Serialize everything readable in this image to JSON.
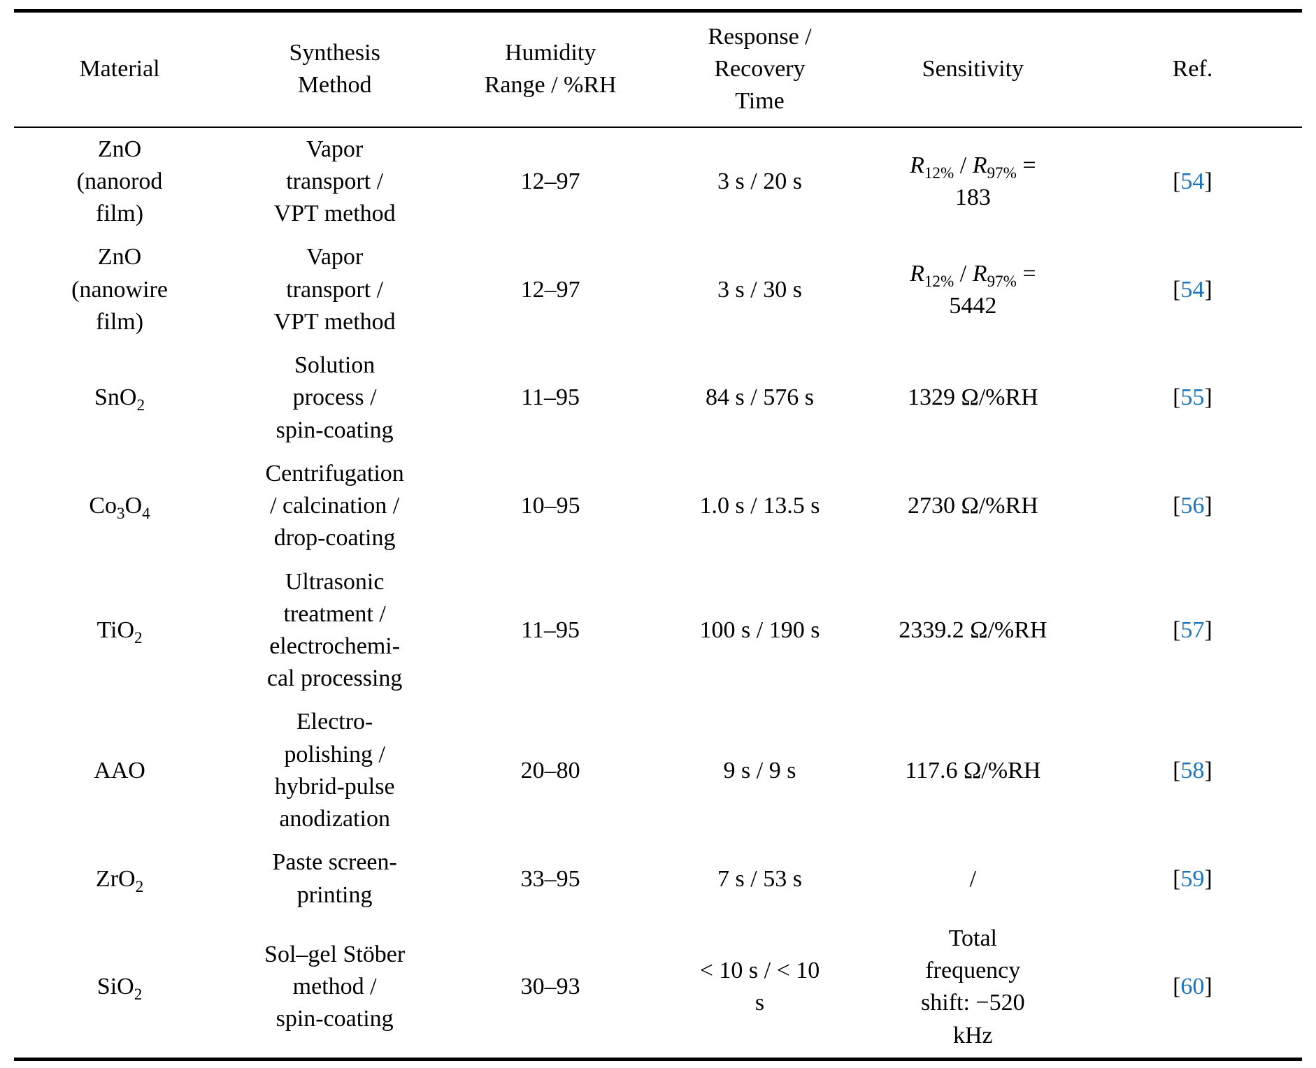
{
  "page": {
    "background_color": "#ffffff",
    "text_color": "#000000",
    "citation_color": "#1b75bc"
  },
  "table": {
    "columns": [
      {
        "id": "material",
        "label": "Material"
      },
      {
        "id": "synthesis",
        "label": "Synthesis\nMethod"
      },
      {
        "id": "humidity",
        "label": "Humidity\nRange / %RH"
      },
      {
        "id": "response",
        "label": "Response /\nRecovery\nTime"
      },
      {
        "id": "sensitivity",
        "label": "Sensitivity"
      },
      {
        "id": "ref",
        "label": "Ref."
      }
    ],
    "rows": [
      {
        "material": [
          {
            "t": "ZnO\n(nanorod\nfilm)"
          }
        ],
        "synthesis": [
          {
            "t": "Vapor\ntransport /\nVPT method"
          }
        ],
        "humidity": [
          {
            "t": "12–97"
          }
        ],
        "response": [
          {
            "t": "3 s / 20 s"
          }
        ],
        "sensitivity": [
          {
            "t": "R",
            "i": true
          },
          {
            "t": "12%",
            "sub": true
          },
          {
            "t": " / "
          },
          {
            "t": "R",
            "i": true
          },
          {
            "t": "97%",
            "sub": true
          },
          {
            "t": " =\n183"
          }
        ],
        "ref": [
          {
            "t": "["
          },
          {
            "t": "54",
            "ref": true
          },
          {
            "t": "]"
          }
        ]
      },
      {
        "material": [
          {
            "t": "ZnO\n(nanowire\nfilm)"
          }
        ],
        "synthesis": [
          {
            "t": "Vapor\ntransport /\nVPT method"
          }
        ],
        "humidity": [
          {
            "t": "12–97"
          }
        ],
        "response": [
          {
            "t": "3 s / 30 s"
          }
        ],
        "sensitivity": [
          {
            "t": "R",
            "i": true
          },
          {
            "t": "12%",
            "sub": true
          },
          {
            "t": " / "
          },
          {
            "t": "R",
            "i": true
          },
          {
            "t": "97%",
            "sub": true
          },
          {
            "t": " =\n5442"
          }
        ],
        "ref": [
          {
            "t": "["
          },
          {
            "t": "54",
            "ref": true
          },
          {
            "t": "]"
          }
        ]
      },
      {
        "material": [
          {
            "t": "SnO"
          },
          {
            "t": "2",
            "sub": true
          }
        ],
        "synthesis": [
          {
            "t": "Solution\nprocess /\nspin-coating"
          }
        ],
        "humidity": [
          {
            "t": "11–95"
          }
        ],
        "response": [
          {
            "t": "84 s / 576 s"
          }
        ],
        "sensitivity": [
          {
            "t": "1329 Ω/%RH"
          }
        ],
        "ref": [
          {
            "t": "["
          },
          {
            "t": "55",
            "ref": true
          },
          {
            "t": "]"
          }
        ]
      },
      {
        "material": [
          {
            "t": "Co"
          },
          {
            "t": "3",
            "sub": true
          },
          {
            "t": "O"
          },
          {
            "t": "4",
            "sub": true
          }
        ],
        "synthesis": [
          {
            "t": "Centrifugation\n/ calcination /\ndrop-coating"
          }
        ],
        "humidity": [
          {
            "t": "10–95"
          }
        ],
        "response": [
          {
            "t": "1.0 s / 13.5 s"
          }
        ],
        "sensitivity": [
          {
            "t": "2730 Ω/%RH"
          }
        ],
        "ref": [
          {
            "t": "["
          },
          {
            "t": "56",
            "ref": true
          },
          {
            "t": "]"
          }
        ]
      },
      {
        "material": [
          {
            "t": "TiO"
          },
          {
            "t": "2",
            "sub": true
          }
        ],
        "synthesis": [
          {
            "t": "Ultrasonic\ntreatment /\nelectrochemi-\ncal processing"
          }
        ],
        "humidity": [
          {
            "t": "11–95"
          }
        ],
        "response": [
          {
            "t": "100 s / 190 s"
          }
        ],
        "sensitivity": [
          {
            "t": "2339.2 Ω/%RH"
          }
        ],
        "ref": [
          {
            "t": "["
          },
          {
            "t": "57",
            "ref": true
          },
          {
            "t": "]"
          }
        ]
      },
      {
        "material": [
          {
            "t": "AAO"
          }
        ],
        "synthesis": [
          {
            "t": "Electro-\npolishing /\nhybrid-pulse\nanodization"
          }
        ],
        "humidity": [
          {
            "t": "20–80"
          }
        ],
        "response": [
          {
            "t": "9 s / 9 s"
          }
        ],
        "sensitivity": [
          {
            "t": "117.6 Ω/%RH"
          }
        ],
        "ref": [
          {
            "t": "["
          },
          {
            "t": "58",
            "ref": true
          },
          {
            "t": "]"
          }
        ]
      },
      {
        "material": [
          {
            "t": "ZrO"
          },
          {
            "t": "2",
            "sub": true
          }
        ],
        "synthesis": [
          {
            "t": "Paste screen-\nprinting"
          }
        ],
        "humidity": [
          {
            "t": "33–95"
          }
        ],
        "response": [
          {
            "t": "7 s / 53 s"
          }
        ],
        "sensitivity": [
          {
            "t": "/"
          }
        ],
        "ref": [
          {
            "t": "["
          },
          {
            "t": "59",
            "ref": true
          },
          {
            "t": "]"
          }
        ]
      },
      {
        "material": [
          {
            "t": "SiO"
          },
          {
            "t": "2",
            "sub": true
          }
        ],
        "synthesis": [
          {
            "t": "Sol–gel Stöber\nmethod /\nspin-coating"
          }
        ],
        "humidity": [
          {
            "t": "30–93"
          }
        ],
        "response": [
          {
            "t": "< 10 s / < 10\ns"
          }
        ],
        "sensitivity": [
          {
            "t": "Total\nfrequency\nshift: −520\nkHz"
          }
        ],
        "ref": [
          {
            "t": "["
          },
          {
            "t": "60",
            "ref": true
          },
          {
            "t": "]"
          }
        ]
      }
    ]
  }
}
